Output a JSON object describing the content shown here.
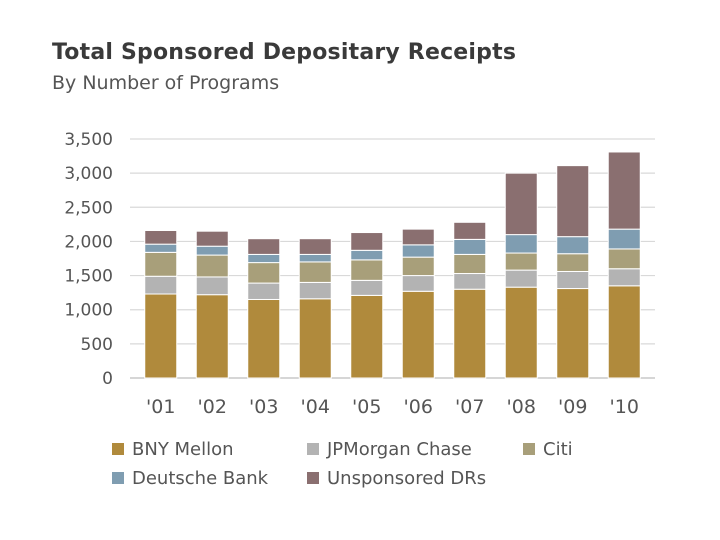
{
  "chart_data": {
    "type": "bar",
    "stacked": true,
    "title": "Total Sponsored Depositary Receipts",
    "subtitle": "By Number of Programs",
    "categories": [
      "'01",
      "'02",
      "'03",
      "'04",
      "'05",
      "'06",
      "'07",
      "'08",
      "'09",
      "'10"
    ],
    "ylim": [
      0,
      3500
    ],
    "yticks": [
      "0",
      "500",
      "1,000",
      "1,500",
      "2,000",
      "2,500",
      "3,000",
      "3,500"
    ],
    "ytick_values": [
      0,
      500,
      1000,
      1500,
      2000,
      2500,
      3000,
      3500
    ],
    "grid": true,
    "legend_position": "bottom",
    "series": [
      {
        "name": "BNY Mellon",
        "color": "#b08a3c",
        "values": [
          1230,
          1220,
          1150,
          1160,
          1210,
          1270,
          1300,
          1330,
          1310,
          1350
        ]
      },
      {
        "name": "JPMorgan Chase",
        "color": "#b3b3b3",
        "values": [
          260,
          260,
          240,
          240,
          220,
          230,
          230,
          250,
          250,
          250
        ]
      },
      {
        "name": "Citi",
        "color": "#a89f7a",
        "values": [
          350,
          320,
          300,
          300,
          300,
          270,
          280,
          250,
          260,
          290
        ]
      },
      {
        "name": "Deutsche Bank",
        "color": "#7f9db1",
        "values": [
          120,
          130,
          120,
          110,
          140,
          180,
          220,
          270,
          250,
          290
        ]
      },
      {
        "name": "Unsponsored DRs",
        "color": "#8a6f70",
        "values": [
          200,
          220,
          230,
          230,
          260,
          230,
          250,
          900,
          1040,
          1130
        ]
      }
    ]
  }
}
